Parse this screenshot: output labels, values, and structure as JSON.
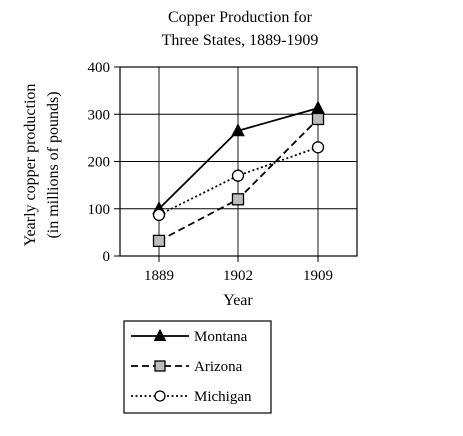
{
  "chart_data": {
    "type": "line",
    "title_lines": [
      "Copper Production for",
      "Three States, 1889-1909"
    ],
    "xlabel": "Year",
    "ylabel_lines": [
      "Yearly copper production",
      "(in millions of pounds)"
    ],
    "x": [
      "1889",
      "1902",
      "1909"
    ],
    "ylim": [
      0,
      400
    ],
    "yticks": [
      "0",
      "100",
      "200",
      "300",
      "400"
    ],
    "grid": true,
    "legend_position": "bottom-center",
    "series": [
      {
        "name": "Montana",
        "marker": "triangle",
        "line_style": "solid",
        "values": [
          100,
          265,
          313
        ]
      },
      {
        "name": "Arizona",
        "marker": "square",
        "line_style": "dashed",
        "values": [
          32,
          120,
          290
        ]
      },
      {
        "name": "Michigan",
        "marker": "circle",
        "line_style": "dotted",
        "values": [
          87,
          170,
          230
        ]
      }
    ],
    "colors": {
      "ink": "#000000",
      "square_fill": "#bdbdbd",
      "grid": "#000000"
    }
  }
}
